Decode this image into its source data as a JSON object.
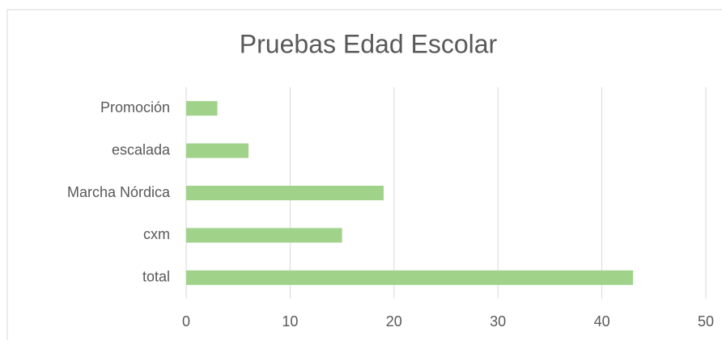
{
  "chart_data": {
    "type": "bar",
    "orientation": "horizontal",
    "title": "Pruebas Edad Escolar",
    "categories": [
      "Promoción",
      "escalada",
      "Marcha Nórdica",
      "cxm",
      "total"
    ],
    "values": [
      3,
      6,
      19,
      15,
      43
    ],
    "color": "#a0d28a",
    "xlim": [
      0,
      50
    ],
    "xticks": [
      0,
      10,
      20,
      30,
      40,
      50
    ],
    "grid": true
  }
}
